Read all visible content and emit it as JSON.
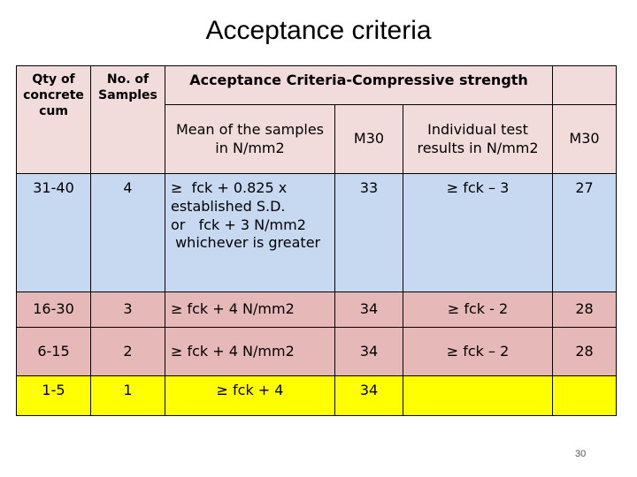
{
  "title": "Acceptance criteria",
  "table": {
    "header": [
      "Qty of concrete cum",
      "No. of Samples",
      "Acceptance Criteria-Compressive strength"
    ],
    "subheader": [
      "Mean of the samples in N/mm2",
      "M30",
      "Individual test results in N/mm2",
      "M30"
    ],
    "rows": [
      [
        "31-40",
        "4",
        [
          "≥  fck + 0.825 x",
          "established S.D.",
          "or   fck + 3 N/mm2",
          " whichever is greater"
        ],
        "33",
        "≥  fck – 3",
        "27"
      ],
      [
        "16-30",
        "3",
        "≥  fck + 4 N/mm2",
        "34",
        "≥ fck - 2",
        "28"
      ],
      [
        "6-15",
        "2",
        "≥  fck + 4 N/mm2",
        "34",
        "≥  fck – 2",
        "28"
      ],
      [
        "1-5",
        "1",
        "≥  fck + 4",
        "34"
      ]
    ]
  },
  "page_number": "30"
}
